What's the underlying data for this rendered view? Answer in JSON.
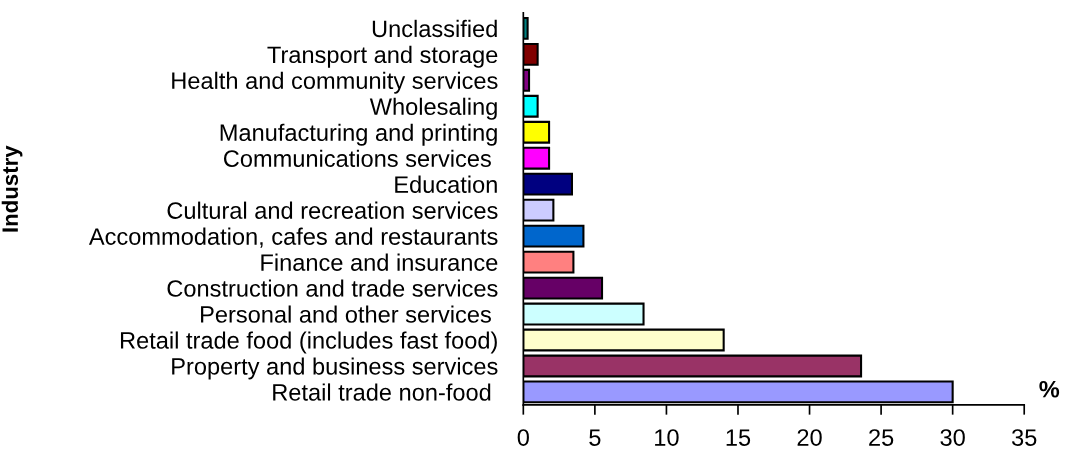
{
  "chart_data": {
    "type": "bar",
    "orientation": "horizontal",
    "xlabel": "%",
    "ylabel": "Industry",
    "categories": [
      "Unclassified",
      "Transport and storage",
      "Health and community services",
      "Wholesaling",
      "Manufacturing and printing",
      "Communications services ",
      "Education",
      "Cultural and recreation services",
      "Accommodation, cafes and restaurants",
      "Finance and insurance",
      "Construction and trade services",
      "Personal and other services ",
      "Retail trade food (includes fast food)",
      "Property and business services",
      "Retail trade non-food "
    ],
    "values": [
      0.3,
      1.0,
      0.4,
      1.0,
      1.8,
      1.8,
      3.4,
      2.1,
      4.2,
      3.5,
      5.5,
      8.4,
      14.0,
      23.6,
      30.0
    ],
    "colors": [
      "#008080",
      "#800000",
      "#800080",
      "#00ffff",
      "#ffff00",
      "#ff00ff",
      "#000080",
      "#ccccff",
      "#0066cc",
      "#ff8080",
      "#660066",
      "#ccffff",
      "#ffffcc",
      "#993366",
      "#9999ff"
    ],
    "xlim": [
      0,
      35
    ],
    "xticks": [
      0,
      5,
      10,
      15,
      20,
      25,
      30,
      35
    ],
    "grid": false,
    "legend": false
  }
}
